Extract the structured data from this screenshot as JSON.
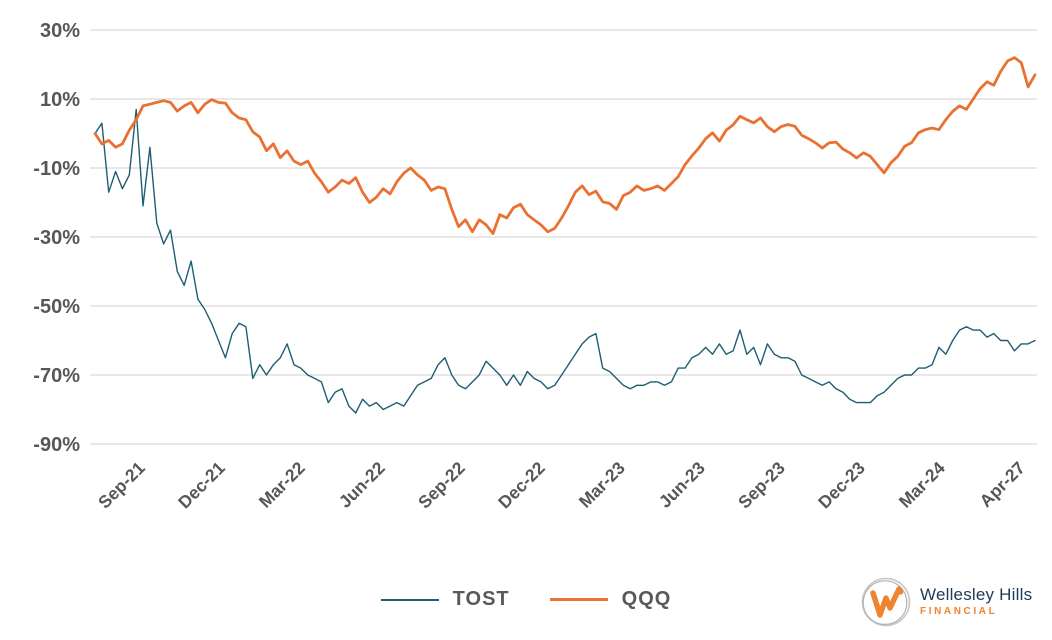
{
  "chart_data": {
    "type": "line",
    "title": "",
    "xlabel": "",
    "ylabel": "",
    "ylim": [
      -90,
      30
    ],
    "grid": "horizontal",
    "gridline_color": "#D9D9D9",
    "label_color": "#575757",
    "legend_position": "bottom-center",
    "y_tick_labels": [
      "30%",
      "10%",
      "-10%",
      "-30%",
      "-50%",
      "-70%",
      "-90%"
    ],
    "y_tick_values": [
      30,
      10,
      -10,
      -30,
      -50,
      -70,
      -90
    ],
    "x_tick_labels": [
      "Sep-21",
      "Dec-21",
      "Mar-22",
      "Jun-22",
      "Sep-22",
      "Dec-22",
      "Mar-23",
      "Jun-23",
      "Sep-23",
      "Dec-23",
      "Mar-24",
      "Apr-27"
    ],
    "series": [
      {
        "name": "TOST",
        "color": "#1F5D73",
        "stroke_width": 1.4,
        "values": [
          0,
          3,
          -17,
          -11,
          -16,
          -12,
          7,
          -21,
          -4,
          -26,
          -32,
          -28,
          -40,
          -44,
          -37,
          -48,
          -51,
          -55,
          -60,
          -65,
          -58,
          -55,
          -56,
          -71,
          -67,
          -70,
          -67,
          -65,
          -61,
          -67,
          -68,
          -70,
          -71,
          -72,
          -78,
          -75,
          -74,
          -79,
          -81,
          -77,
          -79,
          -78,
          -80,
          -79,
          -78,
          -79,
          -76,
          -73,
          -72,
          -71,
          -67,
          -65,
          -70,
          -73,
          -74,
          -72,
          -70,
          -66,
          -68,
          -70,
          -73,
          -70,
          -73,
          -69,
          -71,
          -72,
          -74,
          -73,
          -70,
          -67,
          -64,
          -61,
          -59,
          -58,
          -68,
          -69,
          -71,
          -73,
          -74,
          -73,
          -73,
          -72,
          -72,
          -73,
          -72,
          -68,
          -68,
          -65,
          -64,
          -62,
          -64,
          -61,
          -64,
          -63,
          -57,
          -64,
          -62,
          -67,
          -61,
          -64,
          -65,
          -65,
          -66,
          -70,
          -71,
          -72,
          -73,
          -72,
          -74,
          -75,
          -77,
          -78,
          -78,
          -78,
          -76,
          -75,
          -73,
          -71,
          -70,
          -70,
          -68,
          -68,
          -67,
          -62,
          -64,
          -60,
          -57,
          -56,
          -57,
          -57,
          -59,
          -58,
          -60,
          -60,
          -63,
          -61,
          -61,
          -60
        ]
      },
      {
        "name": "QQQ",
        "color": "#E97132",
        "stroke_width": 2.8,
        "values": [
          0,
          -3,
          -2,
          -4,
          -3,
          1,
          4,
          8,
          8.5,
          9,
          9.5,
          9,
          6.5,
          8,
          9,
          6,
          8.5,
          9.8,
          9,
          8.8,
          6,
          4.5,
          4,
          0.5,
          -1,
          -5,
          -3,
          -7,
          -5,
          -8,
          -9,
          -8,
          -11.5,
          -14,
          -17,
          -15.5,
          -13.5,
          -14.5,
          -12.8,
          -17,
          -20,
          -18.5,
          -16,
          -17.5,
          -14,
          -11.5,
          -10,
          -12,
          -13.5,
          -16.5,
          -15.5,
          -16,
          -22,
          -27,
          -25,
          -28.5,
          -25,
          -26.5,
          -29,
          -23.5,
          -24.5,
          -21.5,
          -20.5,
          -23.5,
          -25,
          -26.5,
          -28.5,
          -27.5,
          -24.5,
          -21,
          -17,
          -15.2,
          -17.7,
          -16.7,
          -19.8,
          -20.3,
          -22,
          -18,
          -17,
          -15.2,
          -16.5,
          -16,
          -15.2,
          -16.5,
          -14.5,
          -12.5,
          -9,
          -6.5,
          -4.2,
          -1.5,
          0.2,
          -2.2,
          1,
          2.5,
          5,
          4,
          3.1,
          4.5,
          2,
          0.5,
          2,
          2.6,
          2.1,
          -0.5,
          -1.5,
          -2.7,
          -4.2,
          -2.7,
          -2.5,
          -4.5,
          -5.6,
          -7.1,
          -5.6,
          -6.6,
          -9,
          -11.4,
          -8.5,
          -6.6,
          -3.7,
          -2.7,
          0.2,
          1.1,
          1.6,
          1.1,
          4,
          6.4,
          8,
          7,
          10,
          13,
          15,
          14,
          18,
          21,
          22,
          20.5,
          13.5,
          17
        ]
      }
    ]
  },
  "legend": {
    "tost_label": "TOST",
    "qqq_label": "QQQ"
  },
  "branding": {
    "brand_name": "Wellesley Hills",
    "brand_sub": "FINANCIAL",
    "navy": "#1E3A56",
    "orange": "#F0832E"
  }
}
